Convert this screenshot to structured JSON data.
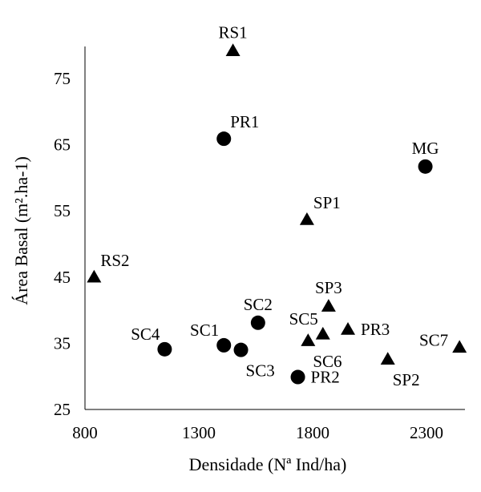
{
  "chart_data": {
    "type": "scatter",
    "title": "",
    "xlabel": "Densidade (Nª Ind/ha)",
    "ylabel": "Área Basal (m².ha-1)",
    "xlim": [
      800,
      2480
    ],
    "ylim": [
      25,
      80
    ],
    "xticks": [
      800,
      1300,
      1800,
      2300
    ],
    "yticks": [
      25,
      35,
      45,
      55,
      65,
      75
    ],
    "grid": false,
    "legend": "none",
    "points": [
      {
        "label": "RS1",
        "x": 1450,
        "y": 79.2,
        "marker": "triangle",
        "label_pos": "above"
      },
      {
        "label": "PR1",
        "x": 1410,
        "y": 65.9,
        "marker": "circle",
        "label_pos": "above-right"
      },
      {
        "label": "MG",
        "x": 2295,
        "y": 61.7,
        "marker": "circle",
        "label_pos": "above"
      },
      {
        "label": "SP1",
        "x": 1775,
        "y": 53.7,
        "marker": "triangle",
        "label_pos": "above-right"
      },
      {
        "label": "RS2",
        "x": 840,
        "y": 45.0,
        "marker": "triangle",
        "label_pos": "above-right"
      },
      {
        "label": "SP3",
        "x": 1870,
        "y": 40.6,
        "marker": "triangle",
        "label_pos": "above"
      },
      {
        "label": "SC2",
        "x": 1560,
        "y": 38.1,
        "marker": "circle",
        "label_pos": "above"
      },
      {
        "label": "PR3",
        "x": 1955,
        "y": 37.1,
        "marker": "triangle",
        "label_pos": "right"
      },
      {
        "label": "SC5",
        "x": 1845,
        "y": 36.4,
        "marker": "triangle",
        "label_pos": "above-left"
      },
      {
        "label": "SC6",
        "x": 1780,
        "y": 35.4,
        "marker": "triangle",
        "label_pos": "below-right"
      },
      {
        "label": "SC7",
        "x": 2445,
        "y": 34.4,
        "marker": "triangle",
        "label_pos": "left"
      },
      {
        "label": "SC1",
        "x": 1410,
        "y": 34.7,
        "marker": "circle",
        "label_pos": "above-left"
      },
      {
        "label": "SC4",
        "x": 1150,
        "y": 34.1,
        "marker": "circle",
        "label_pos": "above-left"
      },
      {
        "label": "SC3",
        "x": 1485,
        "y": 34.0,
        "marker": "circle",
        "label_pos": "below-right"
      },
      {
        "label": "SP2",
        "x": 2130,
        "y": 32.6,
        "marker": "triangle",
        "label_pos": "below-right"
      },
      {
        "label": "PR2",
        "x": 1735,
        "y": 29.9,
        "marker": "circle",
        "label_pos": "right"
      }
    ]
  }
}
